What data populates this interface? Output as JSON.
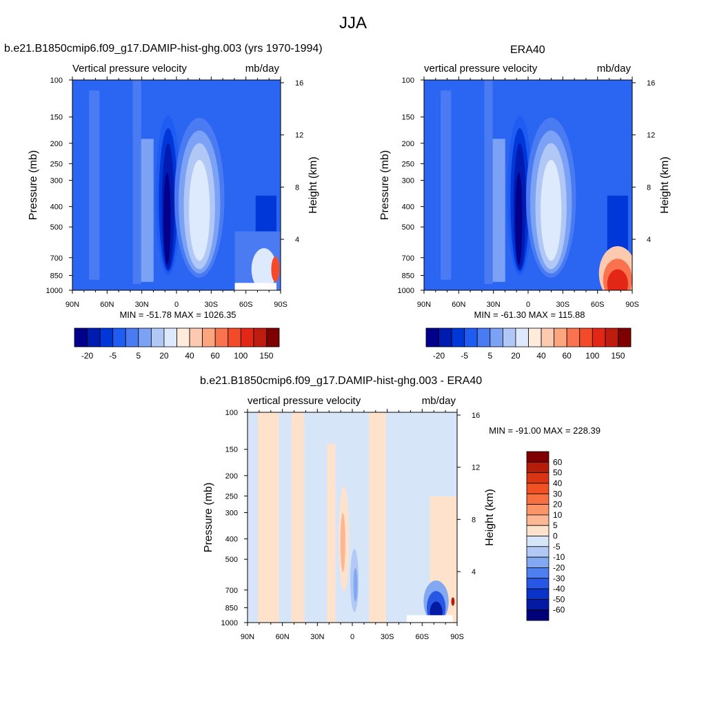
{
  "page": {
    "title": "JJA",
    "panels": [
      {
        "title": "b.e21.B1850cmip6.f09_g17.DAMIP-hist-ghg.003 (yrs 1970-1994)",
        "variable_label": "Vertical pressure velocity",
        "units_label": "mb/day",
        "stats": "MIN = -51.78   MAX = 1026.35"
      },
      {
        "title": "ERA40",
        "variable_label": "vertical pressure velocity",
        "units_label": "mb/day",
        "stats": "MIN = -61.30   MAX = 115.88"
      },
      {
        "title": "b.e21.B1850cmip6.f09_g17.DAMIP-hist-ghg.003 - ERA40",
        "variable_label": "vertical pressure velocity",
        "units_label": "mb/day",
        "stats": "MIN = -91.00   MAX = 228.39"
      }
    ]
  },
  "chart_data": [
    {
      "type": "heatmap",
      "title": "b.e21.B1850cmip6.f09_g17.DAMIP-hist-ghg.003 (yrs 1970-1994)",
      "subtitle_left": "Vertical pressure velocity",
      "subtitle_right": "mb/day",
      "ylabel": "Pressure (mb)",
      "ylabel_right": "Height (km)",
      "x_ticks": [
        "90N",
        "60N",
        "30N",
        "0",
        "30S",
        "60S",
        "90S"
      ],
      "y_ticks": [
        "100",
        "150",
        "200",
        "250",
        "300",
        "400",
        "500",
        "700",
        "850",
        "1000"
      ],
      "y_right_ticks": [
        "16",
        "12",
        "8",
        "4"
      ],
      "y_scale": "log",
      "xlim": [
        90,
        -90
      ],
      "ylim": [
        1000,
        100
      ],
      "min": -51.78,
      "max": 1026.35,
      "colorbar_labels": [
        "-20",
        "-5",
        "5",
        "20",
        "40",
        "60",
        "100",
        "150"
      ],
      "colorbar_colors": [
        "#02008a",
        "#001bb1",
        "#0037d9",
        "#1f5cf2",
        "#4a7bf2",
        "#7ba2f4",
        "#b1c8f7",
        "#dde9fc",
        "#feebdb",
        "#fdc9af",
        "#fca57f",
        "#f9744e",
        "#f34a2a",
        "#e32717",
        "#bd1c0e",
        "#7f0000"
      ]
    },
    {
      "type": "heatmap",
      "title": "ERA40",
      "subtitle_left": "vertical pressure velocity",
      "subtitle_right": "mb/day",
      "ylabel": "Pressure (mb)",
      "ylabel_right": "Height (km)",
      "x_ticks": [
        "90N",
        "60N",
        "30N",
        "0",
        "30S",
        "60S",
        "90S"
      ],
      "y_ticks": [
        "100",
        "150",
        "200",
        "250",
        "300",
        "400",
        "500",
        "700",
        "850",
        "1000"
      ],
      "y_right_ticks": [
        "16",
        "12",
        "8",
        "4"
      ],
      "y_scale": "log",
      "xlim": [
        90,
        -90
      ],
      "ylim": [
        1000,
        100
      ],
      "min": -61.3,
      "max": 115.88,
      "colorbar_labels": [
        "-20",
        "-5",
        "5",
        "20",
        "40",
        "60",
        "100",
        "150"
      ],
      "colorbar_colors": [
        "#02008a",
        "#001bb1",
        "#0037d9",
        "#1f5cf2",
        "#4a7bf2",
        "#7ba2f4",
        "#b1c8f7",
        "#dde9fc",
        "#feebdb",
        "#fdc9af",
        "#fca57f",
        "#f9744e",
        "#f34a2a",
        "#e32717",
        "#bd1c0e",
        "#7f0000"
      ]
    },
    {
      "type": "heatmap",
      "title": "b.e21.B1850cmip6.f09_g17.DAMIP-hist-ghg.003 - ERA40",
      "subtitle_left": "vertical pressure velocity",
      "subtitle_right": "mb/day",
      "ylabel": "Pressure (mb)",
      "ylabel_right": "Height (km)",
      "x_ticks": [
        "90N",
        "60N",
        "30N",
        "0",
        "30S",
        "60S",
        "90S"
      ],
      "y_ticks": [
        "100",
        "150",
        "200",
        "250",
        "300",
        "400",
        "500",
        "700",
        "850",
        "1000"
      ],
      "y_right_ticks": [
        "16",
        "12",
        "8",
        "4"
      ],
      "y_scale": "log",
      "xlim": [
        90,
        -90
      ],
      "ylim": [
        1000,
        100
      ],
      "min": -91.0,
      "max": 228.39,
      "colorbar_labels": [
        "60",
        "50",
        "40",
        "30",
        "20",
        "10",
        "5",
        "0",
        "-5",
        "-10",
        "-20",
        "-30",
        "-40",
        "-50",
        "-60"
      ],
      "colorbar_colors": [
        "#7f0000",
        "#b51c0a",
        "#d93413",
        "#f25123",
        "#f8703f",
        "#fb9466",
        "#fcb894",
        "#fee2cc",
        "#d6e6f8",
        "#b1c9f4",
        "#82a8f1",
        "#4f7eee",
        "#2857e6",
        "#0a33c9",
        "#031aa3",
        "#00007a"
      ]
    }
  ]
}
